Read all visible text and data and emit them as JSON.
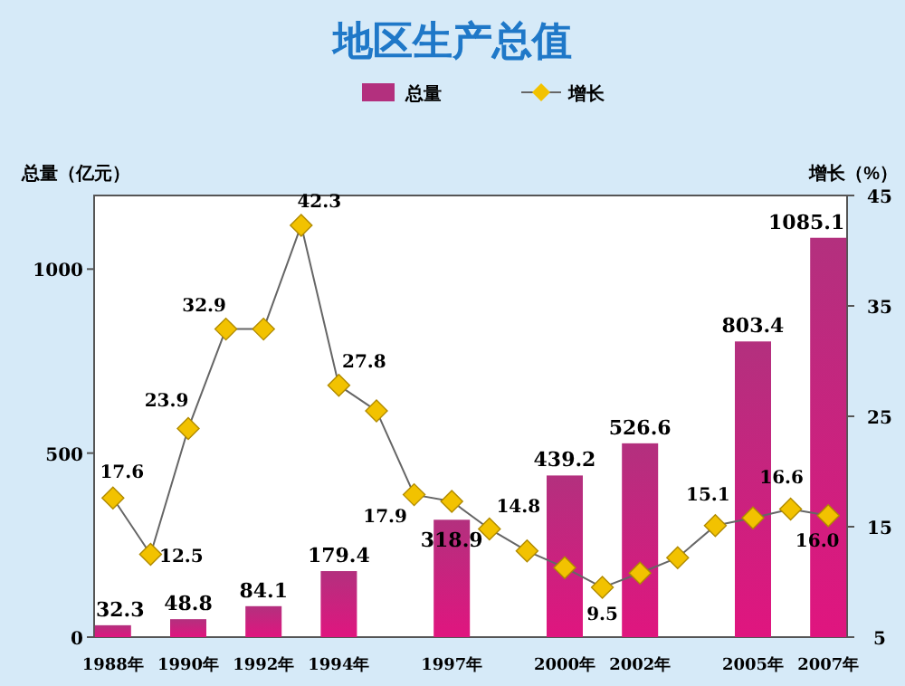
{
  "chart_data": {
    "type": "bar",
    "title": "地区生产总值",
    "ylabel": "总量（亿元）",
    "y2label": "增长（%）",
    "categories": [
      "1988年",
      null,
      "1990年",
      null,
      "1992年",
      null,
      "1994年",
      null,
      null,
      "1997年",
      null,
      null,
      "2000年",
      null,
      "2002年",
      null,
      null,
      "2005年",
      null,
      "2007年"
    ],
    "series": [
      {
        "name": "总量",
        "color": "#b3307e",
        "values": [
          32.3,
          null,
          48.8,
          null,
          84.1,
          null,
          179.4,
          null,
          null,
          318.9,
          null,
          null,
          439.2,
          null,
          526.6,
          null,
          null,
          803.4,
          null,
          1085.1
        ],
        "value_labels": [
          "32.3",
          null,
          "48.8",
          null,
          "84.1",
          null,
          "179.4",
          null,
          null,
          "318.9",
          null,
          null,
          "439.2",
          null,
          "526.6",
          null,
          null,
          "803.4",
          null,
          "1085.1"
        ]
      },
      {
        "name": "增长",
        "type": "line",
        "axis": "y2",
        "color": "#f2c200",
        "marker": "diamond",
        "values": [
          17.6,
          12.5,
          23.9,
          32.9,
          32.9,
          42.3,
          27.8,
          25.5,
          17.9,
          17.3,
          14.8,
          12.8,
          11.3,
          9.5,
          10.8,
          12.2,
          15.1,
          15.8,
          16.6,
          16.0
        ],
        "value_labels": [
          "17.6",
          "12.5",
          "23.9",
          "32.9",
          null,
          "42.3",
          "27.8",
          null,
          "17.9",
          null,
          "14.8",
          null,
          null,
          "9.5",
          null,
          null,
          "15.1",
          null,
          "16.6",
          "16.0"
        ]
      }
    ],
    "ylim": [
      0,
      1200
    ],
    "yticks": [
      0,
      500,
      1000
    ],
    "y2lim": [
      5,
      45
    ],
    "y2ticks": [
      5,
      15,
      25,
      35,
      45
    ],
    "legend": "top",
    "grid": false
  }
}
